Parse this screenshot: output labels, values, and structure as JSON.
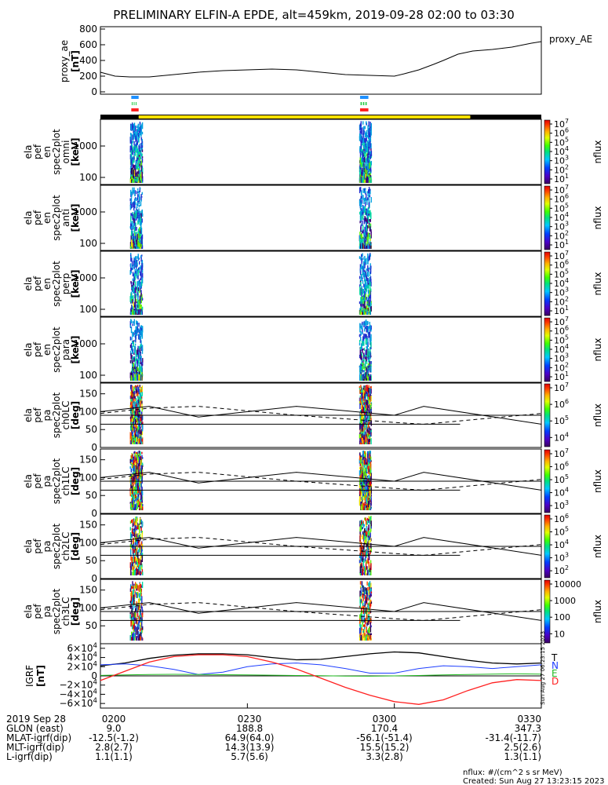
{
  "title": "PRELIMINARY ELFIN-A EPDE, alt=459km, 2019-09-28 02:00 to 03:30",
  "ae_panel": {
    "ylabel": "proxy_ae",
    "unit": "[nT]",
    "legend": "proxy_AE",
    "ticks": [
      "800",
      "600",
      "400",
      "200",
      "0"
    ],
    "ylim": [
      -30,
      830
    ]
  },
  "spectro_panels": [
    {
      "ylabel": [
        "ela",
        "pef",
        "en",
        "spec2plot",
        "omni"
      ],
      "unit": "[keV]",
      "yticks": [
        "1000",
        "100"
      ],
      "cb_label": "nflux",
      "cb_ticks": [
        "10^7",
        "10^6",
        "10^5",
        "10^4",
        "10^3",
        "10^2",
        "10^1"
      ]
    },
    {
      "ylabel": [
        "ela",
        "pef",
        "en",
        "spec2plot",
        "anti"
      ],
      "unit": "[keV]",
      "yticks": [
        "1000",
        "100"
      ],
      "cb_label": "nflux",
      "cb_ticks": [
        "10^7",
        "10^6",
        "10^5",
        "10^4",
        "10^3",
        "10^2",
        "10^1"
      ]
    },
    {
      "ylabel": [
        "ela",
        "pef",
        "en",
        "spec2plot",
        "perp"
      ],
      "unit": "[keV]",
      "yticks": [
        "1000",
        "100"
      ],
      "cb_label": "nflux",
      "cb_ticks": [
        "10^7",
        "10^6",
        "10^5",
        "10^4",
        "10^3",
        "10^2",
        "10^1"
      ]
    },
    {
      "ylabel": [
        "ela",
        "pef",
        "en",
        "spec2plot",
        "para"
      ],
      "unit": "[keV]",
      "yticks": [
        "1000",
        "100"
      ],
      "cb_label": "nflux",
      "cb_ticks": [
        "10^7",
        "10^6",
        "10^5",
        "10^4",
        "10^3",
        "10^2",
        "10^1"
      ]
    }
  ],
  "pa_panels": [
    {
      "ylabel": [
        "ela",
        "pef",
        "pa",
        "spec2plot",
        "ch0LC"
      ],
      "unit": "[deg]",
      "yticks": [
        "150",
        "100",
        "50",
        "0"
      ],
      "cb_label": "nflux",
      "cb_ticks": [
        "10^7",
        "10^6",
        "10^5",
        "10^4"
      ]
    },
    {
      "ylabel": [
        "ela",
        "pef",
        "pa",
        "spec2plot",
        "ch1LC"
      ],
      "unit": "[deg]",
      "yticks": [
        "150",
        "100",
        "50",
        "0"
      ],
      "cb_label": "nflux",
      "cb_ticks": [
        "10^7",
        "10^6",
        "10^5",
        "10^4",
        "10^3"
      ]
    },
    {
      "ylabel": [
        "ela",
        "pef",
        "pa",
        "spec2plot",
        "ch2LC"
      ],
      "unit": "[deg]",
      "yticks": [
        "150",
        "100",
        "50",
        "0"
      ],
      "cb_label": "nflux",
      "cb_ticks": [
        "10^6",
        "10^5",
        "10^4",
        "10^3",
        "10^2"
      ]
    },
    {
      "ylabel": [
        "ela",
        "pef",
        "pa",
        "spec2plot",
        "ch3LC"
      ],
      "unit": "[deg]",
      "yticks": [
        "150",
        "100",
        "50"
      ],
      "cb_label": "nflux",
      "cb_ticks": [
        "10000",
        "1000",
        "100",
        "10"
      ]
    }
  ],
  "igrf_panel": {
    "ylabel": "IGRF",
    "unit": "[nT]",
    "yticks": [
      "6×10^4",
      "4×10^4",
      "2×10^4",
      "0",
      "−2×10^4",
      "−4×10^4",
      "−6×10^4"
    ],
    "legend": [
      {
        "label": "T",
        "color": "#000000"
      },
      {
        "label": "N",
        "color": "#1f3fff"
      },
      {
        "label": "E",
        "color": "#22bb22"
      },
      {
        "label": "D",
        "color": "#ff2020"
      }
    ],
    "side_note": "Sun Aug 27 06:23:15 2023"
  },
  "chart_data": {
    "type": "line",
    "x_range": [
      "02:00",
      "03:30"
    ],
    "x_tick_labels": [
      "0200",
      "0230",
      "0300",
      "0330"
    ],
    "proxy_ae": {
      "t_min": [
        0,
        3,
        6,
        10,
        15,
        20,
        25,
        30,
        35,
        40,
        45,
        50,
        55,
        60,
        62,
        65,
        68,
        70,
        73,
        76,
        80,
        84,
        88,
        90
      ],
      "nT": [
        250,
        200,
        190,
        190,
        220,
        250,
        270,
        280,
        290,
        280,
        250,
        220,
        210,
        200,
        230,
        280,
        350,
        400,
        480,
        520,
        540,
        570,
        620,
        640
      ]
    },
    "igrf": {
      "t_min": [
        0,
        5,
        10,
        15,
        20,
        25,
        30,
        35,
        40,
        45,
        50,
        55,
        60,
        65,
        70,
        75,
        80,
        85,
        90
      ],
      "total": [
        22000,
        28000,
        38000,
        45000,
        48000,
        48000,
        46000,
        40000,
        35000,
        36000,
        42000,
        48000,
        52000,
        50000,
        42000,
        34000,
        28000,
        26000,
        28000
      ],
      "north": [
        24000,
        26000,
        22000,
        14000,
        3000,
        8000,
        20000,
        26000,
        28000,
        24000,
        16000,
        6000,
        6000,
        16000,
        22000,
        20000,
        16000,
        20000,
        24000
      ],
      "east": [
        1000,
        2000,
        3000,
        3500,
        3000,
        2500,
        2000,
        1500,
        800,
        300,
        -500,
        -600,
        0,
        800,
        2000,
        3000,
        4000,
        4500,
        4000
      ],
      "down": [
        -10000,
        10000,
        30000,
        42000,
        46000,
        46000,
        42000,
        30000,
        15000,
        -5000,
        -25000,
        -42000,
        -56000,
        -62000,
        -52000,
        -32000,
        -15000,
        -8000,
        -10000
      ]
    },
    "ela_pa_boundary_deg": {
      "t_min": [
        0,
        10,
        20,
        40,
        60,
        66,
        90
      ],
      "upper": [
        100,
        115,
        85,
        115,
        90,
        115,
        65
      ],
      "dashed": [
        95,
        110,
        115,
        90,
        70,
        65,
        95
      ]
    },
    "science_zones": {
      "cyan_bars_min": [
        [
          6.3,
          7.8
        ],
        [
          53.0,
          54.7
        ]
      ],
      "green_bars_min": [
        [
          6.4,
          7.6
        ],
        [
          53.1,
          54.6
        ]
      ],
      "red_bars_min": [
        [
          6.3,
          7.8
        ],
        [
          53.0,
          54.7
        ]
      ],
      "yellow_track_min": [
        [
          7.8,
          75.5
        ]
      ]
    },
    "data_bursts_min": [
      [
        6.0,
        8.5
      ],
      [
        52.8,
        55.2
      ]
    ]
  },
  "ephemeris": {
    "rows": [
      {
        "label": "2019 Sep 28",
        "values": [
          "0200",
          "0230",
          "0300",
          "0330"
        ]
      },
      {
        "label": "GLON (east)",
        "values": [
          "9.0",
          "188.8",
          "170.4",
          "347.3"
        ]
      },
      {
        "label": "MLAT-igrf(dip)",
        "values": [
          "-12.5(-1.2)",
          "64.9(64.0)",
          "-56.1(-51.4)",
          "-31.4(-11.7)"
        ]
      },
      {
        "label": "MLT-igrf(dip)",
        "values": [
          "2.8(2.7)",
          "14.3(13.9)",
          "15.5(15.2)",
          "2.5(2.6)"
        ]
      },
      {
        "label": "L-igrf(dip)",
        "values": [
          "1.1(1.1)",
          "5.7(5.6)",
          "3.3(2.8)",
          "1.3(1.1)"
        ]
      }
    ]
  },
  "footer": {
    "units": "nflux: #/(cm^2 s sr MeV)",
    "created": "Created: Sun Aug 27 13:23:15 2023"
  },
  "colors": {
    "axis": "#000000",
    "ae_line": "#000000",
    "track_black": "#000000",
    "track_yellow": "#ffe000",
    "zone_cyan": "#1e90ff",
    "zone_green": "#22cc44",
    "zone_red": "#ff2020"
  }
}
